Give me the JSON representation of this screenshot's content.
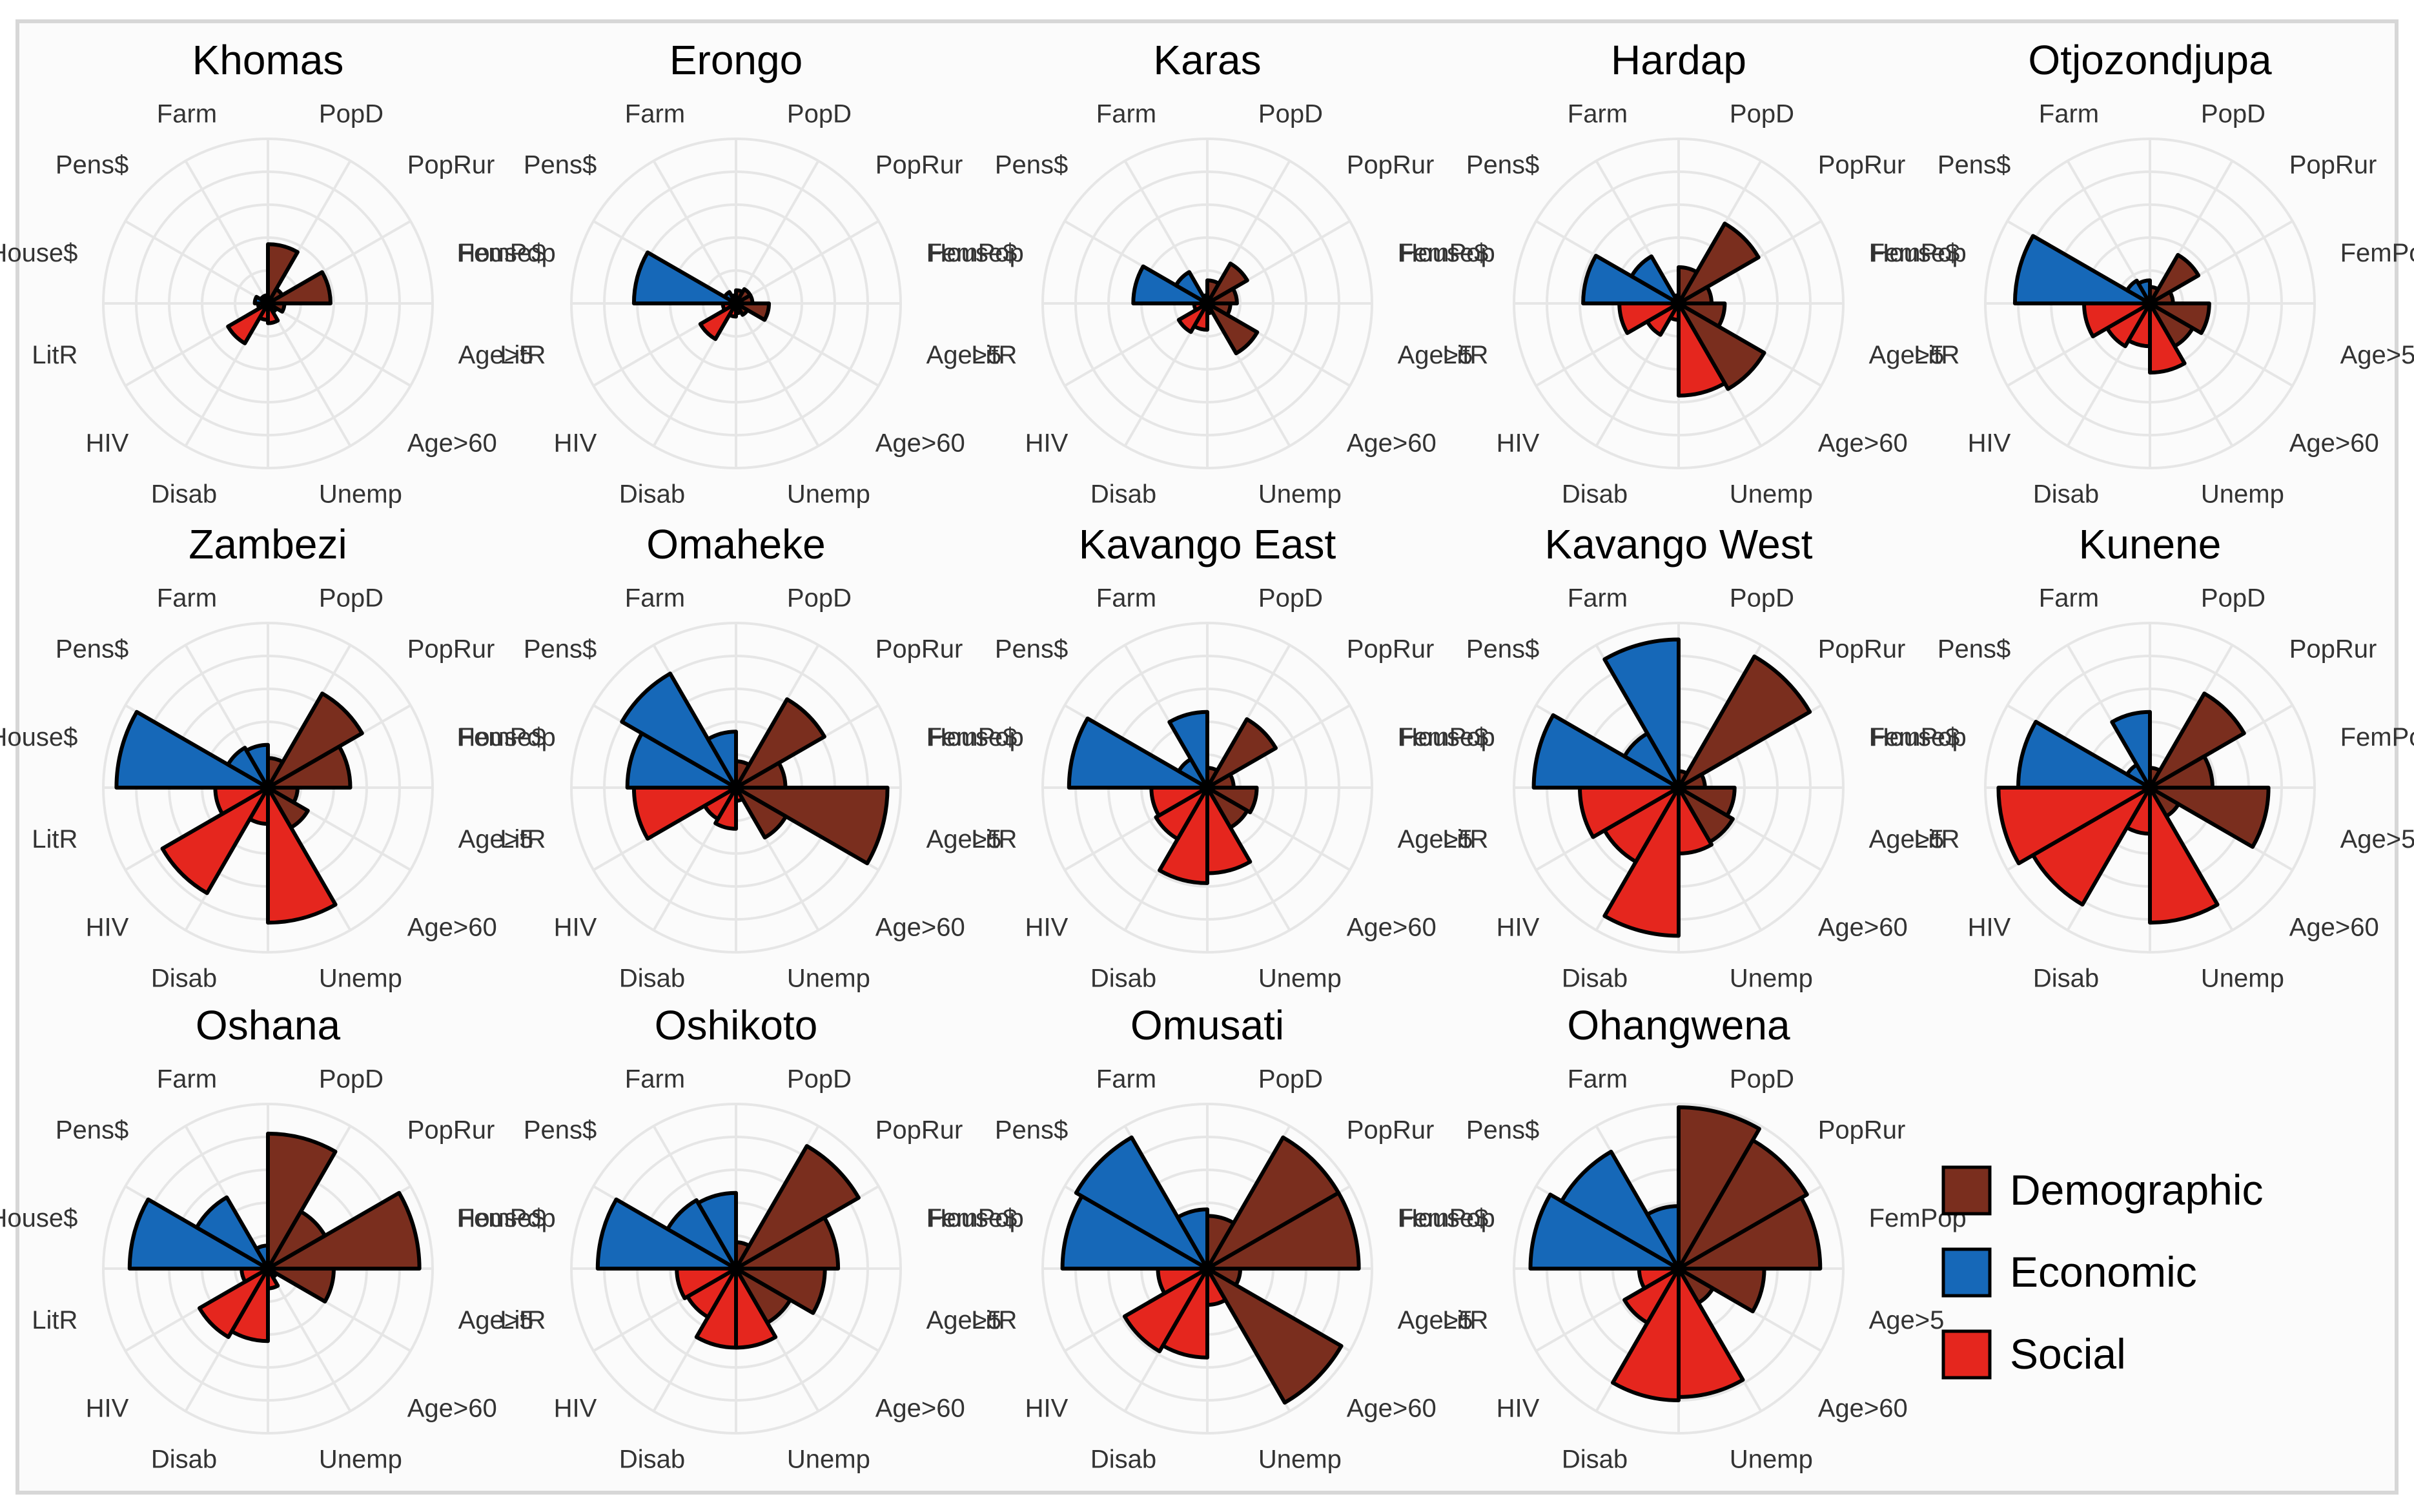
{
  "chart_data": {
    "type": "polar-bar",
    "variables": [
      "PopD",
      "PopRur",
      "FemPop",
      "Age>5",
      "Age>60",
      "Unemp",
      "Disab",
      "HIV",
      "LitR",
      "House$",
      "Pens$",
      "Farm"
    ],
    "variable_groups": [
      "Demographic",
      "Demographic",
      "Demographic",
      "Demographic",
      "Demographic",
      "Social",
      "Social",
      "Social",
      "Social",
      "Economic",
      "Economic",
      "Economic"
    ],
    "radial_max": 1.0,
    "grid_rings": [
      0.2,
      0.4,
      0.6,
      0.8,
      1.0
    ],
    "legend": [
      {
        "label": "Demographic",
        "color": "#7a2e1e"
      },
      {
        "label": "Economic",
        "color": "#1668b8"
      },
      {
        "label": "Social",
        "color": "#e5261e"
      }
    ],
    "regions": [
      {
        "name": "Khomas",
        "values": [
          0.36,
          0.1,
          0.38,
          0.1,
          0.06,
          0.12,
          0.1,
          0.28,
          0.06,
          0.08,
          0.05,
          0.05
        ]
      },
      {
        "name": "Erongo",
        "values": [
          0.08,
          0.1,
          0.1,
          0.2,
          0.08,
          0.06,
          0.08,
          0.25,
          0.08,
          0.62,
          0.08,
          0.05
        ]
      },
      {
        "name": "Karas",
        "values": [
          0.14,
          0.28,
          0.18,
          0.14,
          0.35,
          0.06,
          0.16,
          0.2,
          0.08,
          0.45,
          0.22,
          0.05
        ]
      },
      {
        "name": "Hardap",
        "values": [
          0.22,
          0.56,
          0.2,
          0.28,
          0.6,
          0.56,
          0.1,
          0.22,
          0.36,
          0.58,
          0.33,
          0.05
        ]
      },
      {
        "name": "Otjozondjupa",
        "values": [
          0.1,
          0.34,
          0.14,
          0.36,
          0.3,
          0.42,
          0.26,
          0.3,
          0.4,
          0.82,
          0.16,
          0.14
        ]
      },
      {
        "name": "Zambezi",
        "values": [
          0.18,
          0.66,
          0.5,
          0.18,
          0.28,
          0.82,
          0.22,
          0.74,
          0.32,
          0.92,
          0.28,
          0.26
        ]
      },
      {
        "name": "Omaheke",
        "values": [
          0.16,
          0.62,
          0.3,
          0.92,
          0.35,
          0.08,
          0.25,
          0.22,
          0.62,
          0.66,
          0.8,
          0.34
        ]
      },
      {
        "name": "Kavango East",
        "values": [
          0.12,
          0.48,
          0.16,
          0.3,
          0.28,
          0.52,
          0.58,
          0.36,
          0.34,
          0.84,
          0.2,
          0.46
        ]
      },
      {
        "name": "Kavango West",
        "values": [
          0.1,
          0.92,
          0.16,
          0.34,
          0.38,
          0.4,
          0.9,
          0.52,
          0.6,
          0.88,
          0.38,
          0.9
        ]
      },
      {
        "name": "Kunene",
        "values": [
          0.12,
          0.66,
          0.38,
          0.72,
          0.2,
          0.82,
          0.28,
          0.82,
          0.92,
          0.8,
          0.16,
          0.46
        ]
      },
      {
        "name": "Oshana",
        "values": [
          0.82,
          0.4,
          0.92,
          0.4,
          0.06,
          0.12,
          0.44,
          0.48,
          0.16,
          0.84,
          0.5,
          0.14
        ]
      },
      {
        "name": "Oshikoto",
        "values": [
          0.16,
          0.86,
          0.62,
          0.54,
          0.38,
          0.48,
          0.48,
          0.34,
          0.36,
          0.84,
          0.48,
          0.46
        ]
      },
      {
        "name": "Omusati",
        "values": [
          0.32,
          0.92,
          0.92,
          0.2,
          0.94,
          0.22,
          0.54,
          0.58,
          0.3,
          0.88,
          0.92,
          0.36
        ]
      },
      {
        "name": "Ohangwena",
        "values": [
          0.98,
          0.9,
          0.86,
          0.52,
          0.24,
          0.78,
          0.8,
          0.38,
          0.24,
          0.9,
          0.82,
          0.38
        ]
      }
    ]
  }
}
